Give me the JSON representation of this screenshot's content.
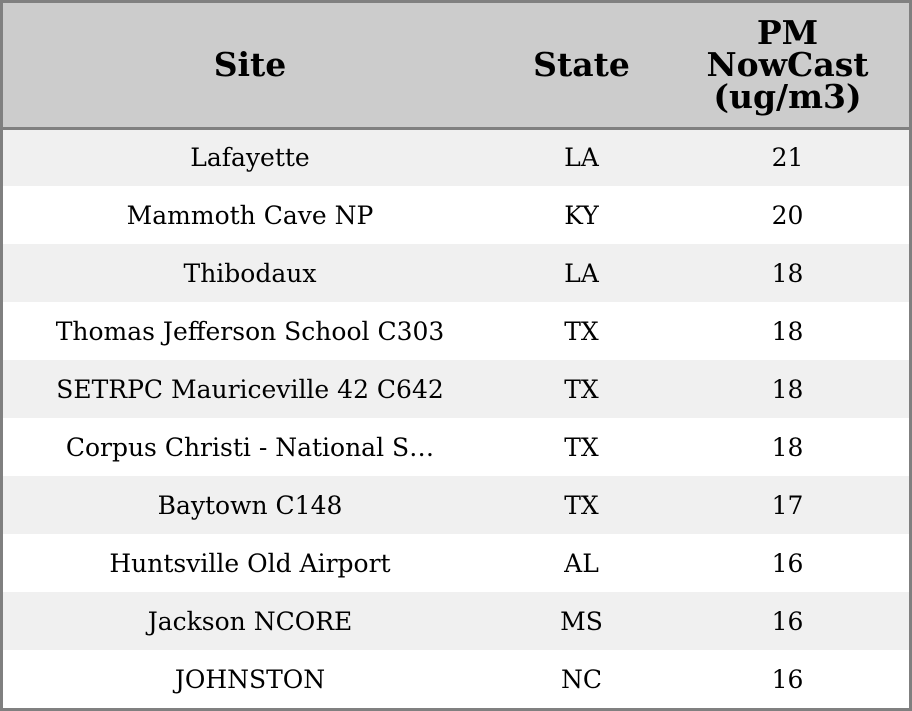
{
  "chart_data": {
    "type": "table",
    "columns": [
      "Site",
      "State",
      "PM NowCast (ug/m3)"
    ],
    "header_lines": {
      "site": "Site",
      "state": "State",
      "pm": [
        "PM",
        "NowCast",
        "(ug/m3)"
      ]
    },
    "rows": [
      {
        "site": "Lafayette",
        "state": "LA",
        "pm": "21"
      },
      {
        "site": "Mammoth Cave NP",
        "state": "KY",
        "pm": "20"
      },
      {
        "site": "Thibodaux",
        "state": "LA",
        "pm": "18"
      },
      {
        "site": "Thomas Jefferson School C303",
        "state": "TX",
        "pm": "18"
      },
      {
        "site": "SETRPC Mauriceville 42 C642",
        "state": "TX",
        "pm": "18"
      },
      {
        "site": "Corpus Christi - National S…",
        "state": "TX",
        "pm": "18"
      },
      {
        "site": "Baytown C148",
        "state": "TX",
        "pm": "17"
      },
      {
        "site": "Huntsville Old Airport",
        "state": "AL",
        "pm": "16"
      },
      {
        "site": "Jackson NCORE",
        "state": "MS",
        "pm": "16"
      },
      {
        "site": "JOHNSTON",
        "state": "NC",
        "pm": "16"
      }
    ],
    "colors": {
      "header_bg": "#cccccc",
      "row_odd_bg": "#f0f0f0",
      "row_even_bg": "#ffffff",
      "border": "#808080"
    }
  }
}
